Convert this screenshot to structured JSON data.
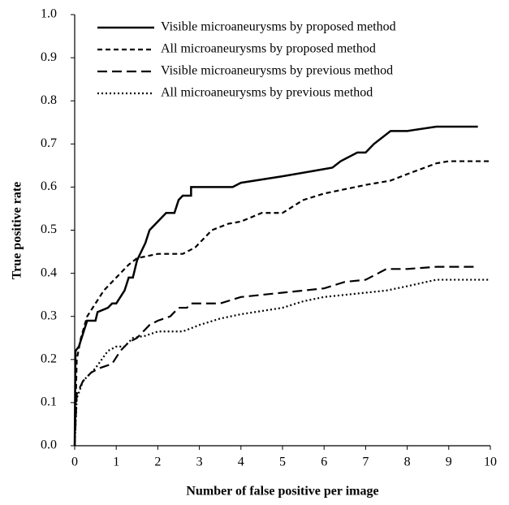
{
  "chart_data": {
    "type": "line",
    "xlabel": "Number of false positive per image",
    "ylabel": "True positive rate",
    "xlim": [
      0,
      10
    ],
    "ylim": [
      0,
      1
    ],
    "xticks": [
      0,
      1,
      2,
      3,
      4,
      5,
      6,
      7,
      8,
      9,
      10
    ],
    "yticks": [
      {
        "value": 0,
        "label": "0.0"
      },
      0.1,
      0.2,
      0.3,
      0.4,
      0.5,
      0.6,
      0.7,
      0.8,
      0.9,
      {
        "value": 1,
        "label": "1.0"
      }
    ],
    "grid": false,
    "legend": "top",
    "series": [
      {
        "name": "Visible microaneurysms by proposed method",
        "color": "#000000",
        "linestyle": "solid",
        "x": [
          0,
          0.02,
          0.1,
          0.2,
          0.3,
          0.5,
          0.55,
          0.8,
          0.9,
          1.0,
          1.2,
          1.3,
          1.4,
          1.5,
          1.7,
          1.8,
          2.0,
          2.2,
          2.4,
          2.5,
          2.6,
          2.8,
          2.8,
          3.8,
          4.0,
          5.0,
          6.2,
          6.4,
          6.8,
          7.0,
          7.2,
          7.6,
          8.0,
          8.7,
          9.7
        ],
        "values": [
          0,
          0.22,
          0.23,
          0.26,
          0.29,
          0.29,
          0.31,
          0.32,
          0.33,
          0.33,
          0.36,
          0.39,
          0.39,
          0.43,
          0.47,
          0.5,
          0.52,
          0.54,
          0.54,
          0.57,
          0.58,
          0.58,
          0.6,
          0.6,
          0.61,
          0.625,
          0.645,
          0.66,
          0.68,
          0.68,
          0.7,
          0.73,
          0.73,
          0.74,
          0.74
        ]
      },
      {
        "name": "All microaneurysms by proposed method",
        "color": "#000000",
        "linestyle": "dashed",
        "x": [
          0,
          0.05,
          0.15,
          0.3,
          0.5,
          0.7,
          0.9,
          1.1,
          1.3,
          1.5,
          2.0,
          2.6,
          2.9,
          3.3,
          3.7,
          4.0,
          4.5,
          5.0,
          5.5,
          6.0,
          6.5,
          7.0,
          7.6,
          8.0,
          8.7,
          9.0,
          10
        ],
        "values": [
          0,
          0.2,
          0.25,
          0.3,
          0.33,
          0.36,
          0.38,
          0.4,
          0.42,
          0.435,
          0.445,
          0.445,
          0.46,
          0.5,
          0.515,
          0.52,
          0.54,
          0.54,
          0.57,
          0.585,
          0.595,
          0.605,
          0.615,
          0.63,
          0.655,
          0.66,
          0.66
        ]
      },
      {
        "name": "Visible microaneurysms by previous method",
        "color": "#000000",
        "linestyle": "longdash",
        "x": [
          0,
          0.05,
          0.2,
          0.4,
          0.6,
          0.9,
          1.1,
          1.3,
          1.5,
          1.8,
          2.0,
          2.3,
          2.5,
          2.7,
          2.8,
          3.5,
          4.0,
          4.5,
          5.0,
          6.0,
          6.5,
          7.0,
          7.5,
          8.0,
          8.7,
          9.7
        ],
        "values": [
          0,
          0.12,
          0.15,
          0.17,
          0.18,
          0.19,
          0.22,
          0.24,
          0.25,
          0.28,
          0.29,
          0.3,
          0.32,
          0.32,
          0.33,
          0.33,
          0.345,
          0.35,
          0.355,
          0.365,
          0.38,
          0.385,
          0.41,
          0.41,
          0.415,
          0.415
        ]
      },
      {
        "name": "All microaneurysms by previous method",
        "color": "#000000",
        "linestyle": "dotted",
        "x": [
          0,
          0.05,
          0.2,
          0.5,
          0.8,
          1.0,
          1.2,
          1.4,
          1.7,
          2.0,
          2.6,
          3.0,
          3.5,
          4.0,
          5.0,
          5.5,
          6.0,
          7.0,
          7.5,
          8.0,
          8.7,
          10
        ],
        "values": [
          0,
          0.11,
          0.15,
          0.18,
          0.22,
          0.23,
          0.23,
          0.25,
          0.255,
          0.265,
          0.265,
          0.28,
          0.295,
          0.305,
          0.32,
          0.335,
          0.345,
          0.355,
          0.36,
          0.37,
          0.385,
          0.385
        ]
      }
    ]
  }
}
